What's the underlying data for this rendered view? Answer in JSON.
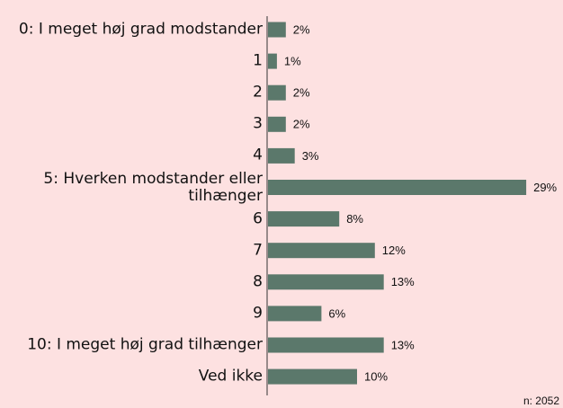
{
  "chart_data": {
    "type": "bar",
    "orientation": "horizontal",
    "categories": [
      "0: I meget høj grad modstander",
      "1",
      "2",
      "3",
      "4",
      "5: Hverken modstander eller tilhænger",
      "6",
      "7",
      "8",
      "9",
      "10: I meget høj grad tilhænger",
      "Ved ikke"
    ],
    "values": [
      2,
      1,
      2,
      2,
      3,
      29,
      8,
      12,
      13,
      6,
      13,
      10
    ],
    "value_labels": [
      "2%",
      "1%",
      "2%",
      "2%",
      "3%",
      "29%",
      "8%",
      "12%",
      "13%",
      "6%",
      "13%",
      "10%"
    ],
    "color": "#5b786b",
    "footnote": "n: 2052"
  }
}
